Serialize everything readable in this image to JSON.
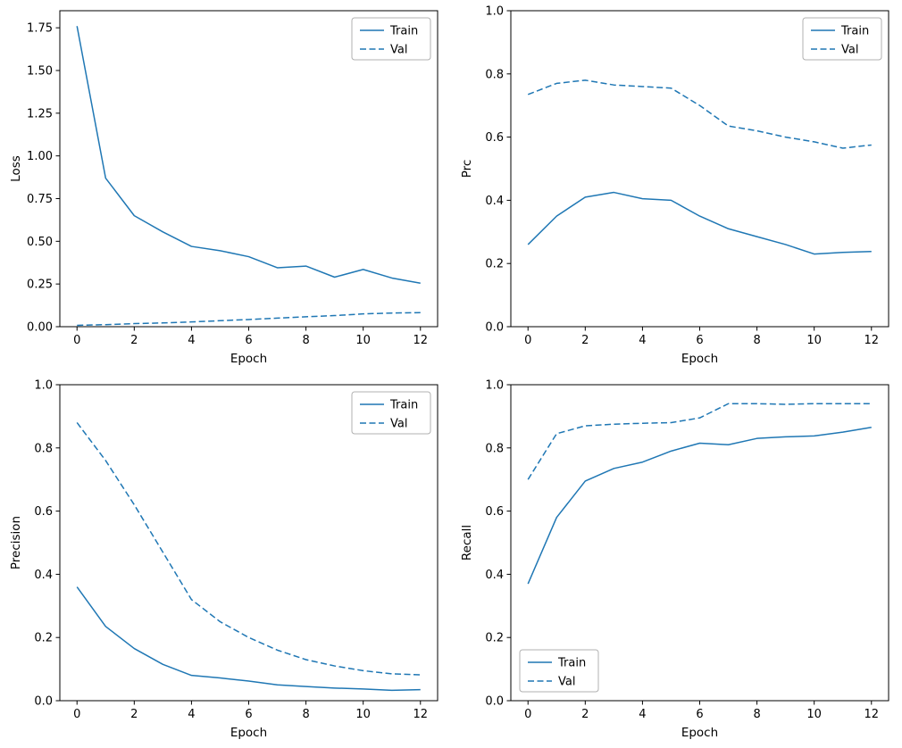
{
  "figure": {
    "background": "#ffffff",
    "spine_color": "#000000",
    "text_color": "#000000",
    "accent_color": "#1f77b4"
  },
  "chart_data": [
    {
      "name": "loss",
      "type": "line",
      "title": "",
      "xlabel": "Epoch",
      "ylabel": "Loss",
      "xlim": [
        -0.6,
        12.6
      ],
      "ylim": [
        0,
        1.85
      ],
      "grid": false,
      "xticks": {
        "values": [
          0,
          2,
          4,
          6,
          8,
          10,
          12
        ],
        "labels": [
          "0",
          "2",
          "4",
          "6",
          "8",
          "10",
          "12"
        ]
      },
      "yticks": {
        "values": [
          0,
          0.25,
          0.5,
          0.75,
          1.0,
          1.25,
          1.5,
          1.75
        ],
        "labels": [
          "0.00",
          "0.25",
          "0.50",
          "0.75",
          "1.00",
          "1.25",
          "1.50",
          "1.75"
        ]
      },
      "legend": {
        "loc": "upper right",
        "entries": [
          "Train",
          "Val"
        ]
      },
      "x": [
        0,
        1,
        2,
        3,
        4,
        5,
        6,
        7,
        8,
        9,
        10,
        11,
        12
      ],
      "series": [
        {
          "name": "Train",
          "style": "solid",
          "color": "#1f77b4",
          "values": [
            1.76,
            0.87,
            0.65,
            0.555,
            0.47,
            0.445,
            0.41,
            0.345,
            0.355,
            0.29,
            0.335,
            0.285,
            0.255
          ]
        },
        {
          "name": "Val",
          "style": "dashed",
          "color": "#1f77b4",
          "values": [
            0.008,
            0.012,
            0.018,
            0.022,
            0.028,
            0.035,
            0.042,
            0.05,
            0.058,
            0.065,
            0.075,
            0.08,
            0.082
          ]
        }
      ]
    },
    {
      "name": "prc",
      "type": "line",
      "title": "",
      "xlabel": "Epoch",
      "ylabel": "Prc",
      "xlim": [
        -0.6,
        12.6
      ],
      "ylim": [
        0,
        1.0
      ],
      "grid": false,
      "xticks": {
        "values": [
          0,
          2,
          4,
          6,
          8,
          10,
          12
        ],
        "labels": [
          "0",
          "2",
          "4",
          "6",
          "8",
          "10",
          "12"
        ]
      },
      "yticks": {
        "values": [
          0,
          0.2,
          0.4,
          0.6,
          0.8,
          1.0
        ],
        "labels": [
          "0.0",
          "0.2",
          "0.4",
          "0.6",
          "0.8",
          "1.0"
        ]
      },
      "legend": {
        "loc": "upper right",
        "entries": [
          "Train",
          "Val"
        ]
      },
      "x": [
        0,
        1,
        2,
        3,
        4,
        5,
        6,
        7,
        8,
        9,
        10,
        11,
        12
      ],
      "series": [
        {
          "name": "Train",
          "style": "solid",
          "color": "#1f77b4",
          "values": [
            0.26,
            0.35,
            0.41,
            0.425,
            0.405,
            0.4,
            0.35,
            0.31,
            0.285,
            0.26,
            0.23,
            0.235,
            0.238
          ]
        },
        {
          "name": "Val",
          "style": "dashed",
          "color": "#1f77b4",
          "values": [
            0.735,
            0.77,
            0.78,
            0.765,
            0.76,
            0.755,
            0.7,
            0.635,
            0.62,
            0.6,
            0.585,
            0.565,
            0.575
          ]
        }
      ]
    },
    {
      "name": "precision",
      "type": "line",
      "title": "",
      "xlabel": "Epoch",
      "ylabel": "Precision",
      "xlim": [
        -0.6,
        12.6
      ],
      "ylim": [
        0,
        1.0
      ],
      "grid": false,
      "xticks": {
        "values": [
          0,
          2,
          4,
          6,
          8,
          10,
          12
        ],
        "labels": [
          "0",
          "2",
          "4",
          "6",
          "8",
          "10",
          "12"
        ]
      },
      "yticks": {
        "values": [
          0,
          0.2,
          0.4,
          0.6,
          0.8,
          1.0
        ],
        "labels": [
          "0.0",
          "0.2",
          "0.4",
          "0.6",
          "0.8",
          "1.0"
        ]
      },
      "legend": {
        "loc": "upper right",
        "entries": [
          "Train",
          "Val"
        ]
      },
      "x": [
        0,
        1,
        2,
        3,
        4,
        5,
        6,
        7,
        8,
        9,
        10,
        11,
        12
      ],
      "series": [
        {
          "name": "Train",
          "style": "solid",
          "color": "#1f77b4",
          "values": [
            0.36,
            0.235,
            0.165,
            0.115,
            0.08,
            0.072,
            0.062,
            0.05,
            0.045,
            0.04,
            0.037,
            0.033,
            0.035
          ]
        },
        {
          "name": "Val",
          "style": "dashed",
          "color": "#1f77b4",
          "values": [
            0.88,
            0.76,
            0.62,
            0.47,
            0.32,
            0.25,
            0.2,
            0.16,
            0.13,
            0.11,
            0.095,
            0.085,
            0.082
          ]
        }
      ]
    },
    {
      "name": "recall",
      "type": "line",
      "title": "",
      "xlabel": "Epoch",
      "ylabel": "Recall",
      "xlim": [
        -0.6,
        12.6
      ],
      "ylim": [
        0,
        1.0
      ],
      "grid": false,
      "xticks": {
        "values": [
          0,
          2,
          4,
          6,
          8,
          10,
          12
        ],
        "labels": [
          "0",
          "2",
          "4",
          "6",
          "8",
          "10",
          "12"
        ]
      },
      "yticks": {
        "values": [
          0,
          0.2,
          0.4,
          0.6,
          0.8,
          1.0
        ],
        "labels": [
          "0.0",
          "0.2",
          "0.4",
          "0.6",
          "0.8",
          "1.0"
        ]
      },
      "legend": {
        "loc": "lower left",
        "entries": [
          "Train",
          "Val"
        ]
      },
      "x": [
        0,
        1,
        2,
        3,
        4,
        5,
        6,
        7,
        8,
        9,
        10,
        11,
        12
      ],
      "series": [
        {
          "name": "Train",
          "style": "solid",
          "color": "#1f77b4",
          "values": [
            0.37,
            0.58,
            0.695,
            0.735,
            0.755,
            0.79,
            0.815,
            0.81,
            0.83,
            0.835,
            0.838,
            0.85,
            0.865
          ]
        },
        {
          "name": "Val",
          "style": "dashed",
          "color": "#1f77b4",
          "values": [
            0.7,
            0.845,
            0.87,
            0.875,
            0.878,
            0.88,
            0.895,
            0.94,
            0.94,
            0.938,
            0.94,
            0.94,
            0.94
          ]
        }
      ]
    }
  ]
}
